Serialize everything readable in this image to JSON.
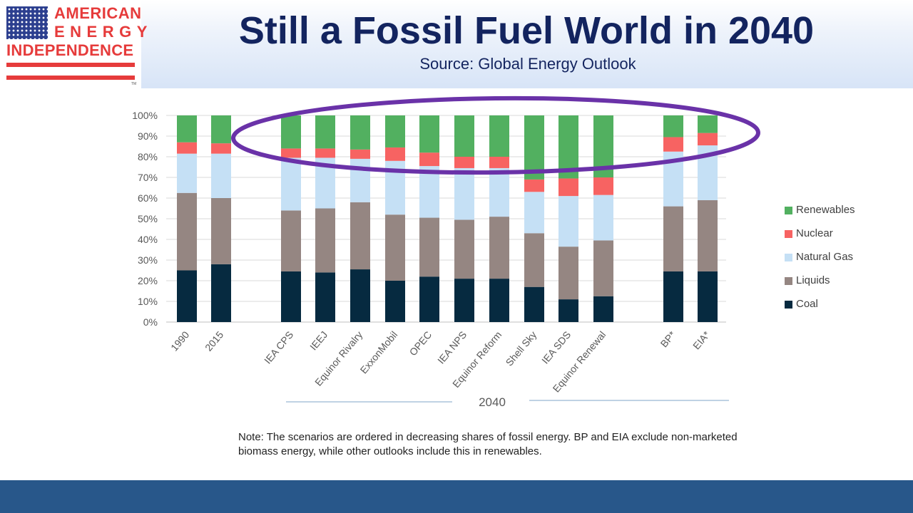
{
  "header": {
    "logo": {
      "line1": "AMERICAN",
      "line2": "ENERGY",
      "line3": "INDEPENDENCE",
      "tm": "TM"
    },
    "title": "Still a Fossil Fuel World in 2040",
    "subtitle": "Source: Global Energy Outlook"
  },
  "colors": {
    "Coal": "#062a40",
    "Liquids": "#958682",
    "Natural Gas": "#c5e0f5",
    "Nuclear": "#f76362",
    "Renewables": "#52b060",
    "highlight": "#6a32a8",
    "footer": "#28578a"
  },
  "chart_data": {
    "type": "bar",
    "stacked": true,
    "categories": [
      "1990",
      "2015",
      "IEA CPS",
      "IEEJ",
      "Equinor Rivalry",
      "ExxonMobil",
      "OPEC",
      "IEA NPS",
      "Equinor Reform",
      "Shell Sky",
      "IEA SDS",
      "Equinor Renewal",
      "BP*",
      "EIA*"
    ],
    "group_label": "2040",
    "grouped_categories": [
      "IEA CPS",
      "IEEJ",
      "Equinor Rivalry",
      "ExxonMobil",
      "OPEC",
      "IEA NPS",
      "Equinor Reform",
      "Shell Sky",
      "IEA SDS",
      "Equinor Renewal"
    ],
    "series": [
      {
        "name": "Coal",
        "values": [
          25,
          28,
          24.5,
          24,
          25.5,
          20,
          22,
          21,
          21,
          17,
          11,
          12.5,
          24.5,
          24.5
        ]
      },
      {
        "name": "Liquids",
        "values": [
          37.5,
          32,
          29.5,
          31,
          32.5,
          32,
          28.5,
          28.5,
          30,
          26,
          25.5,
          27,
          31.5,
          34.5
        ]
      },
      {
        "name": "Natural Gas",
        "values": [
          19,
          21.5,
          25.5,
          24.5,
          21,
          26,
          25,
          25,
          23.5,
          20,
          24.5,
          22,
          26.5,
          26.5
        ]
      },
      {
        "name": "Nuclear",
        "values": [
          5.5,
          5,
          4.5,
          4.5,
          4.5,
          6.5,
          6.5,
          5.5,
          5.5,
          6,
          8.5,
          8.5,
          7,
          6
        ]
      },
      {
        "name": "Renewables",
        "values": [
          13,
          13.5,
          16,
          16,
          16.5,
          15.5,
          18,
          20,
          20,
          31,
          30.5,
          30,
          10.5,
          8.5
        ]
      }
    ],
    "legend_order": [
      "Renewables",
      "Nuclear",
      "Natural Gas",
      "Liquids",
      "Coal"
    ],
    "ylim": [
      0,
      100
    ],
    "yticks": [
      "0%",
      "10%",
      "20%",
      "30%",
      "40%",
      "50%",
      "60%",
      "70%",
      "80%",
      "90%",
      "100%"
    ],
    "grid": true,
    "legend_position": "right",
    "annotation": "ellipse highlighting the Renewables share of the 2040 scenarios"
  },
  "note": "Note: The scenarios are ordered in decreasing shares of fossil energy. BP and EIA exclude non-marketed biomass energy, while other outlooks include this in renewables."
}
